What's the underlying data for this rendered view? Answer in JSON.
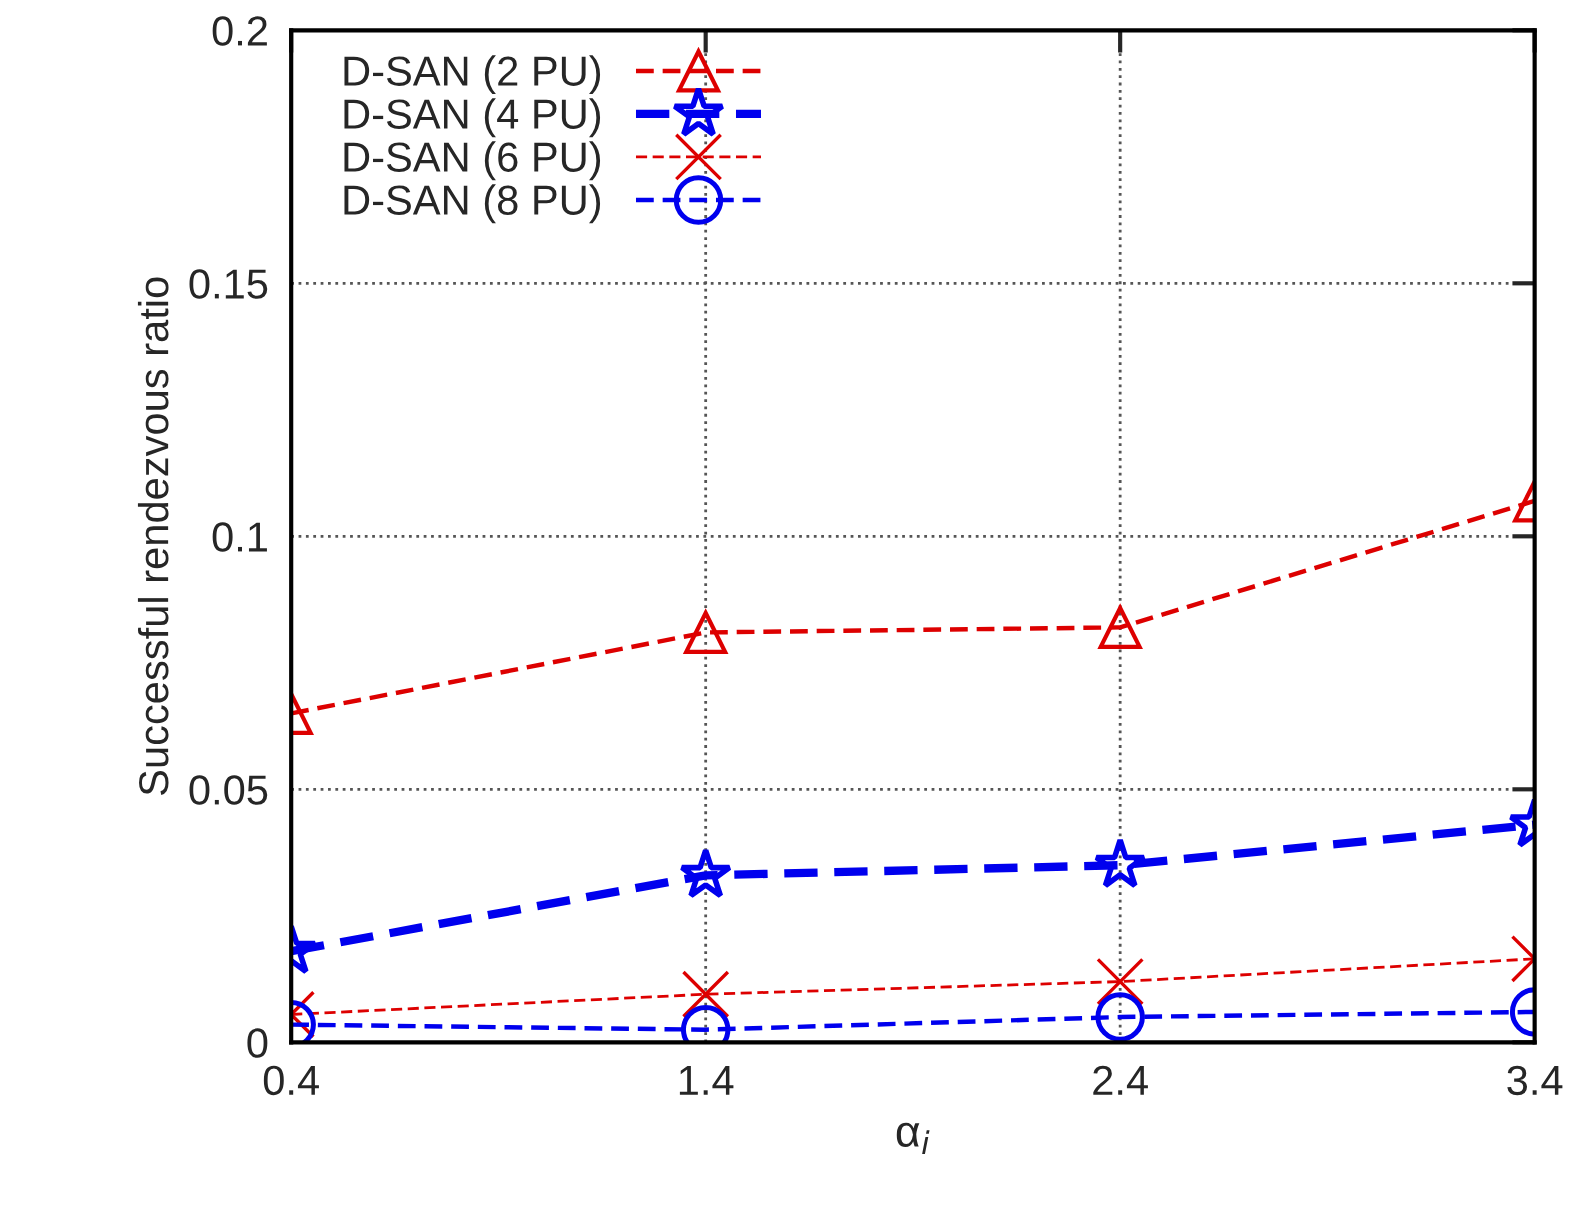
{
  "chart_data": {
    "type": "line",
    "xlabel": "α$_{i}$",
    "ylabel": "Successful rendezvous ratio",
    "x": [
      0.4,
      1.4,
      2.4,
      3.4
    ],
    "series": [
      {
        "name": "D-SAN (2 PU)",
        "color": "#dd0000",
        "marker": "triangle",
        "line_style": "dashed",
        "values": [
          0.065,
          0.081,
          0.082,
          0.107
        ]
      },
      {
        "name": "D-SAN (4 PU)",
        "color": "#0000ee",
        "marker": "star",
        "line_style": "dashed",
        "values": [
          0.018,
          0.033,
          0.035,
          0.043
        ]
      },
      {
        "name": "D-SAN (6 PU)",
        "color": "#dd0000",
        "marker": "cross",
        "line_style": "dashed",
        "values": [
          0.0055,
          0.0095,
          0.012,
          0.0165
        ]
      },
      {
        "name": "D-SAN (8 PU)",
        "color": "#0000ee",
        "marker": "circle",
        "line_style": "dashed",
        "values": [
          0.0035,
          0.0025,
          0.005,
          0.006
        ]
      }
    ],
    "xlim": [
      0.4,
      3.4
    ],
    "ylim": [
      0,
      0.2
    ],
    "xticks": [
      0.4,
      1.4,
      2.4,
      3.4
    ],
    "yticks": [
      0,
      0.05,
      0.1,
      0.15,
      0.2
    ],
    "grid": true,
    "legend": "top left"
  }
}
